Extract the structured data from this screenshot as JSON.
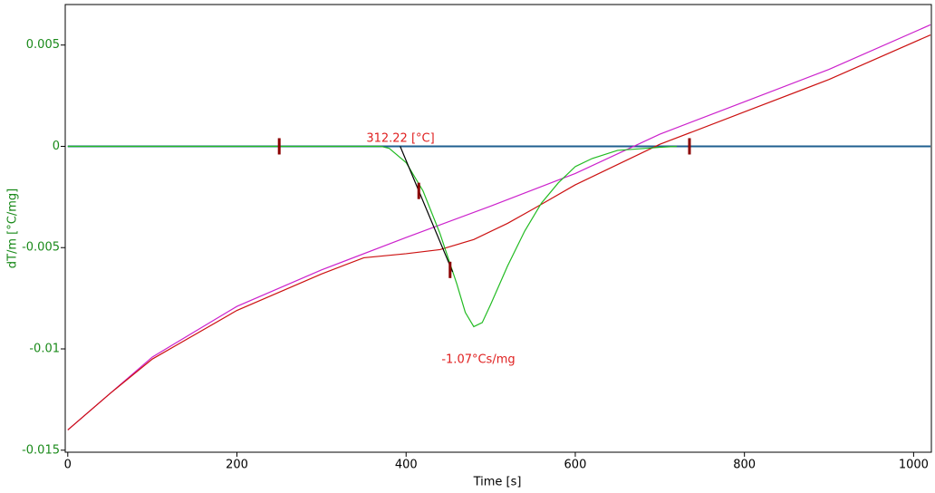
{
  "chart_data": {
    "type": "line",
    "xlabel": "Time [s]",
    "ylabel": "dT/m  [°C/mg]",
    "xlim": [
      -3,
      1021
    ],
    "ylim": [
      -0.0151,
      0.007
    ],
    "xticks": [
      0,
      200,
      400,
      600,
      800,
      1000
    ],
    "yticks": [
      0.005,
      0,
      -0.005,
      -0.01,
      -0.015
    ],
    "series": [
      {
        "color": "#1f5f8f",
        "x": [
          0,
          1020
        ],
        "values": [
          0,
          0
        ]
      },
      {
        "color": "#cc22cc",
        "x": [
          0,
          50,
          100,
          200,
          300,
          400,
          500,
          600,
          700,
          800,
          900,
          1020
        ],
        "values": [
          -0.014,
          -0.0122,
          -0.0104,
          -0.0079,
          -0.0061,
          -0.0045,
          -0.00295,
          -0.00134,
          0.0006,
          0.0022,
          0.0038,
          0.006
        ]
      },
      {
        "color": "#cc1111",
        "x": [
          0,
          50,
          100,
          200,
          300,
          350,
          400,
          440,
          480,
          520,
          550,
          600,
          650,
          700,
          800,
          900,
          1020
        ],
        "values": [
          -0.014,
          -0.0122,
          -0.0105,
          -0.0081,
          -0.0063,
          -0.0055,
          -0.0053,
          -0.0051,
          -0.0046,
          -0.0038,
          -0.0031,
          -0.0019,
          -0.0009,
          0.0001,
          0.0017,
          0.0033,
          0.0055
        ]
      },
      {
        "color": "#22bb22",
        "x": [
          0,
          370,
          380,
          400,
          420,
          440,
          460,
          470,
          480,
          490,
          500,
          520,
          540,
          560,
          580,
          600,
          620,
          650,
          700,
          720
        ],
        "values": [
          0,
          0,
          -0.0001,
          -0.0008,
          -0.0022,
          -0.0043,
          -0.0068,
          -0.0082,
          -0.0089,
          -0.0087,
          -0.0078,
          -0.0059,
          -0.0042,
          -0.0028,
          -0.0018,
          -0.001,
          -0.0006,
          -0.0002,
          -5e-05,
          0
        ]
      },
      {
        "color": "#000000",
        "x": [
          393,
          455
        ],
        "values": [
          0,
          -0.0062
        ]
      }
    ],
    "markers": {
      "color": "#8b0000",
      "x": [
        250,
        415,
        452,
        735
      ],
      "values": [
        0,
        -0.0022,
        -0.0061,
        0
      ]
    },
    "annotations": [
      "312.22 [°C]",
      "-1.07°Cs/mg"
    ]
  }
}
